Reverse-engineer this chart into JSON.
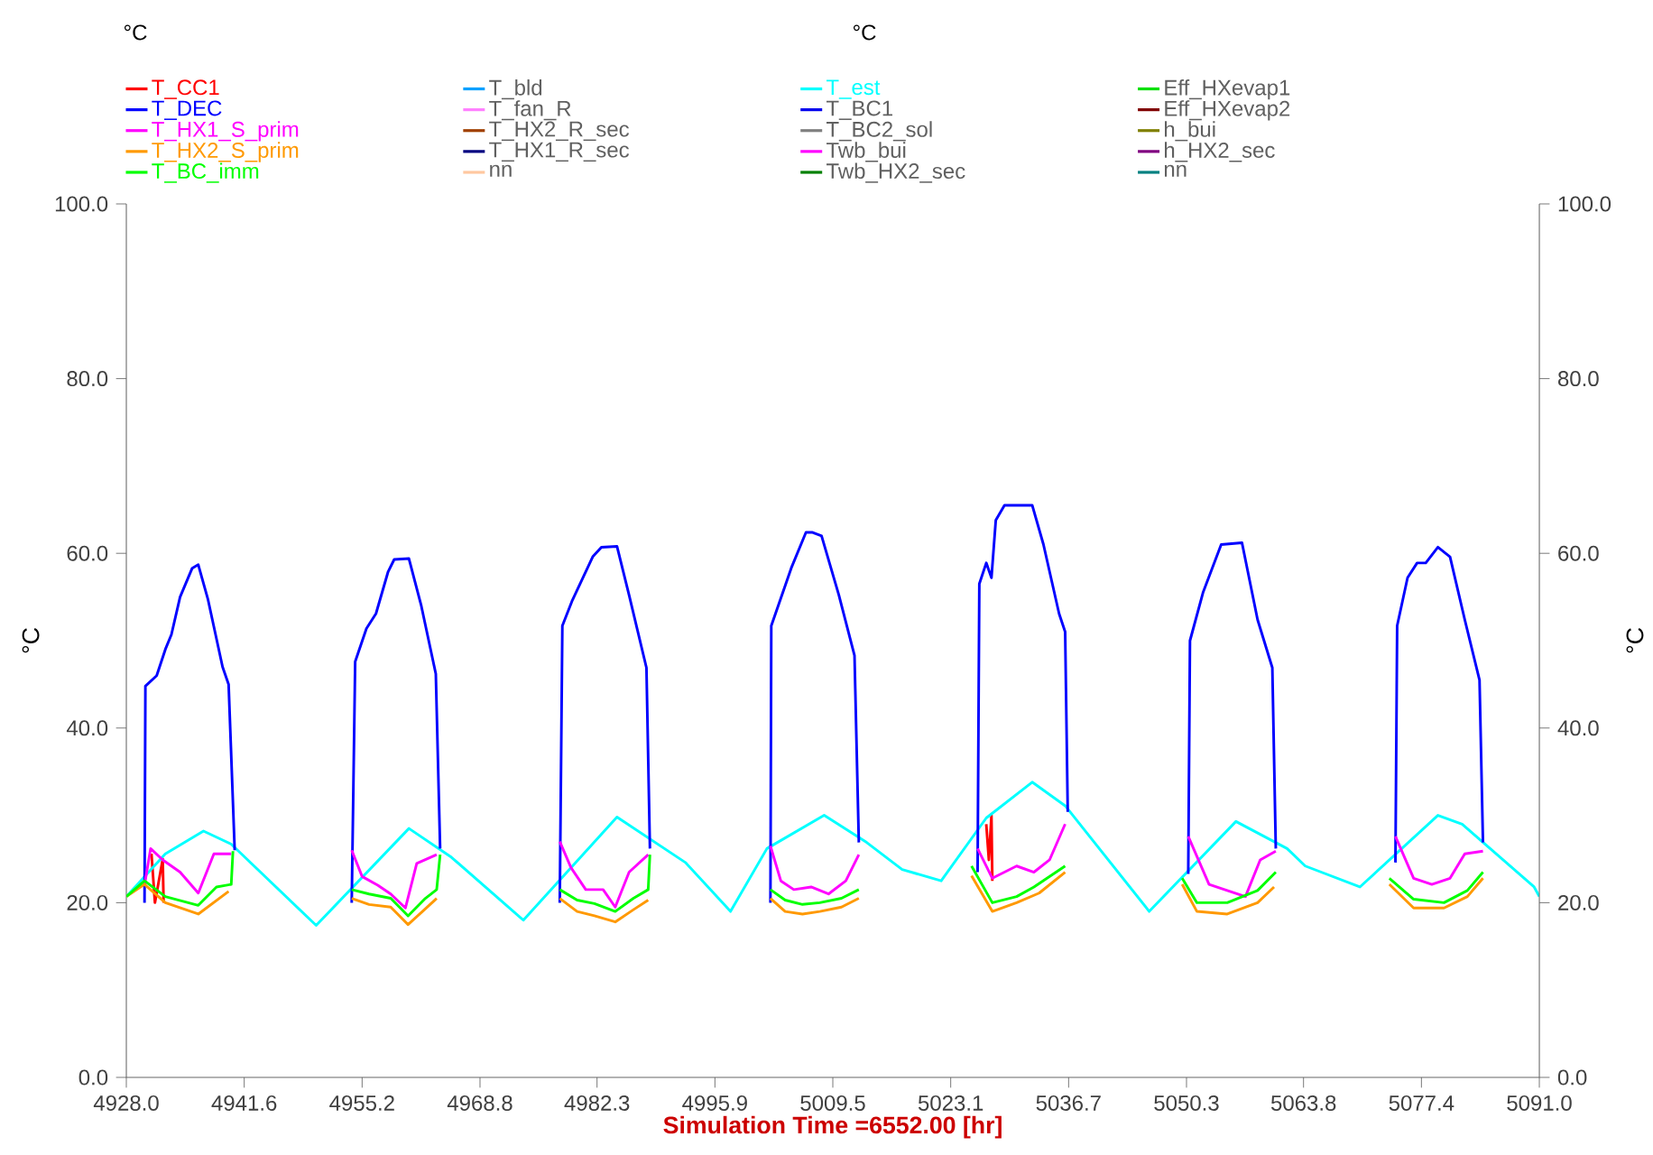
{
  "chart_data": {
    "type": "line",
    "annotations": [
      "°C",
      "°C"
    ],
    "xlabel": "Simulation Time =6552.00 [hr]",
    "ylabel": "°C",
    "y2label": "°C",
    "xlim": [
      4928.0,
      5091.0
    ],
    "xticks": [
      {
        "value": 4928.0,
        "label": "4928.0"
      },
      {
        "value": 4941.6,
        "label": "4941.6"
      },
      {
        "value": 4955.2,
        "label": "4955.2"
      },
      {
        "value": 4968.8,
        "label": "4968.8"
      },
      {
        "value": 4982.3,
        "label": "4982.3"
      },
      {
        "value": 4995.9,
        "label": "4995.9"
      },
      {
        "value": 5009.5,
        "label": "5009.5"
      },
      {
        "value": 5023.1,
        "label": "5023.1"
      },
      {
        "value": 5036.7,
        "label": "5036.7"
      },
      {
        "value": 5050.3,
        "label": "5050.3"
      },
      {
        "value": 5063.8,
        "label": "5063.8"
      },
      {
        "value": 5077.4,
        "label": "5077.4"
      },
      {
        "value": 5091.0,
        "label": "5091.0"
      }
    ],
    "ylim": [
      0,
      100
    ],
    "yticks": [
      {
        "value": 0,
        "label": "0.0"
      },
      {
        "value": 20,
        "label": "20.0"
      },
      {
        "value": 40,
        "label": "40.0"
      },
      {
        "value": 60,
        "label": "60.0"
      },
      {
        "value": 80,
        "label": "80.0"
      },
      {
        "value": 100,
        "label": "100.0"
      }
    ],
    "y2lim": [
      0,
      100
    ],
    "y2ticks": [
      {
        "value": 0,
        "label": "0.0"
      },
      {
        "value": 20,
        "label": "20.0"
      },
      {
        "value": 40,
        "label": "40.0"
      },
      {
        "value": 60,
        "label": "60.0"
      },
      {
        "value": 80,
        "label": "80.0"
      },
      {
        "value": 100,
        "label": "100.0"
      }
    ],
    "legend": "top",
    "marker": "none",
    "line_style": "solid",
    "series": [
      {
        "name": "T_CC1",
        "color": "#ff0000",
        "x": [
          4930.9,
          4931.3,
          4932.2,
          4932.3,
          4980.0,
          5027.2,
          5027.5,
          5027.8,
          5027.9
        ],
        "values": [
          25.6,
          20.0,
          25.0,
          20.0,
          null,
          29.0,
          24.9,
          30.0,
          22.5
        ]
      },
      {
        "name": "T_bld",
        "color": "#00a0ff"
      },
      {
        "name": "T_est",
        "color": "#00ffff",
        "x": [
          4928.0,
          4932.5,
          4936.9,
          4940.1,
          4949.9,
          4960.6,
          4965.5,
          4973.8,
          4984.6,
          4992.5,
          4997.7,
          5001.9,
          5008.5,
          5013.4,
          5017.5,
          5022.0,
          5027.2,
          5032.5,
          5036.3,
          5046.0,
          5056.0,
          5061.9,
          5064.0,
          5070.3,
          5079.3,
          5082.1,
          5090.4,
          5091.0
        ],
        "values": [
          20.7,
          25.6,
          28.2,
          26.7,
          17.4,
          28.5,
          25.2,
          18.0,
          29.8,
          24.6,
          19.0,
          26.2,
          30.0,
          26.9,
          23.8,
          22.5,
          29.7,
          33.8,
          31.1,
          19.0,
          29.3,
          26.2,
          24.2,
          21.8,
          30.0,
          29.0,
          21.8,
          20.7
        ]
      },
      {
        "name": "Eff_HXevap1",
        "color": "#00e000"
      },
      {
        "name": "T_DEC",
        "color": "#0000ff",
        "x": [
          4930.1,
          4930.2,
          4931.5,
          4932.5,
          4933.2,
          4934.2,
          4935.6,
          4936.3,
          4937.4,
          4939.1,
          4939.8,
          4940.5,
          4947.0,
          4954.0,
          4954.4,
          4955.7,
          4956.8,
          4958.2,
          4958.9,
          4960.6,
          4962.0,
          4963.7,
          4964.2,
          4971.0,
          4978.0,
          4978.3,
          4979.4,
          4981.8,
          4982.8,
          4984.6,
          4986.0,
          4988.0,
          4988.4,
          4995.0,
          5002.3,
          5002.4,
          5004.7,
          5006.4,
          5007.1,
          5008.2,
          5010.2,
          5012.0,
          5012.5,
          5019.0,
          5026.2,
          5026.4,
          5027.2,
          5027.8,
          5028.3,
          5029.3,
          5032.5,
          5033.8,
          5035.6,
          5036.3,
          5036.6,
          5043.0,
          5050.5,
          5050.7,
          5052.2,
          5054.3,
          5056.7,
          5058.5,
          5060.2,
          5060.6,
          5067.0,
          5074.4,
          5074.6,
          5075.8,
          5076.9,
          5077.9,
          5079.3,
          5080.7,
          5082.4,
          5084.1,
          5084.5
        ],
        "values": [
          20.0,
          44.8,
          46.0,
          49.0,
          50.7,
          55.0,
          58.3,
          58.7,
          54.8,
          47.0,
          45.0,
          26.0,
          null,
          20.0,
          47.6,
          51.4,
          53.1,
          57.9,
          59.3,
          59.4,
          54.1,
          46.2,
          26.2,
          null,
          20.0,
          51.7,
          54.5,
          59.6,
          60.7,
          60.8,
          55.2,
          46.9,
          26.2,
          null,
          20.0,
          51.7,
          58.3,
          62.4,
          62.4,
          62.0,
          55.2,
          48.3,
          26.9,
          null,
          23.5,
          56.5,
          58.9,
          57.2,
          63.8,
          65.5,
          65.5,
          61.0,
          53.1,
          51.0,
          30.4,
          null,
          23.3,
          50.0,
          55.5,
          61.0,
          61.2,
          52.4,
          46.9,
          26.2,
          null,
          24.6,
          51.7,
          57.2,
          58.9,
          58.9,
          60.7,
          59.6,
          52.4,
          45.5,
          26.9
        ]
      },
      {
        "name": "T_fan_R",
        "color": "#ff80ff"
      },
      {
        "name": "T_BC1",
        "color": "#0000ee"
      },
      {
        "name": "Eff_HXevap2",
        "color": "#800000"
      },
      {
        "name": "T_HX1_S_prim",
        "color": "#ff00ff",
        "x": [
          4930.1,
          4930.8,
          4932.2,
          4934.2,
          4936.3,
          4938.1,
          4940.1,
          4947.0,
          4954.0,
          4955.2,
          4957.0,
          4958.5,
          4960.2,
          4961.5,
          4963.8,
          4971.0,
          4978.0,
          4979.3,
          4981.0,
          4983.0,
          4984.4,
          4986.0,
          4988.2,
          4995.0,
          5002.3,
          5003.5,
          5005.0,
          5007.0,
          5009.0,
          5011.0,
          5012.5,
          5019.0,
          5026.2,
          5027.9,
          5030.7,
          5032.7,
          5034.5,
          5036.3,
          5043.0,
          5050.5,
          5052.9,
          5055.0,
          5057.1,
          5058.8,
          5060.6,
          5067.0,
          5074.4,
          5076.5,
          5078.6,
          5080.7,
          5082.4,
          5084.5
        ],
        "values": [
          22.0,
          26.2,
          24.9,
          23.5,
          21.1,
          25.6,
          25.6,
          null,
          26.0,
          23.0,
          22.0,
          21.0,
          19.4,
          24.5,
          25.5,
          null,
          27.0,
          24.0,
          21.5,
          21.5,
          19.5,
          23.5,
          25.5,
          null,
          26.5,
          22.5,
          21.5,
          21.8,
          21.0,
          22.5,
          25.5,
          null,
          26.2,
          22.8,
          24.2,
          23.5,
          24.9,
          29.0,
          null,
          27.6,
          22.1,
          21.4,
          20.7,
          24.9,
          25.9,
          null,
          27.6,
          22.8,
          22.1,
          22.8,
          25.6,
          25.9
        ]
      },
      {
        "name": "T_HX2_R_sec",
        "color": "#a04000"
      },
      {
        "name": "T_BC2_sol",
        "color": "#808080"
      },
      {
        "name": "h_bui",
        "color": "#808000"
      },
      {
        "name": "T_HX2_S_prim",
        "color": "#ff9900",
        "x": [
          4928.0,
          4930.1,
          4932.5,
          4936.3,
          4939.8,
          4947.0,
          4954.0,
          4956.0,
          4958.5,
          4960.5,
          4962.5,
          4963.8,
          4971.0,
          4978.0,
          4980.0,
          4982.0,
          4984.4,
          4986.5,
          4988.2,
          4995.0,
          5002.3,
          5004.0,
          5006.0,
          5008.0,
          5010.5,
          5012.5,
          5019.0,
          5025.5,
          5027.9,
          5030.7,
          5033.3,
          5036.3,
          5043.0,
          5049.8,
          5051.5,
          5055.0,
          5058.5,
          5060.4,
          5067.0,
          5073.7,
          5076.5,
          5080.0,
          5082.7,
          5084.5
        ],
        "values": [
          20.7,
          22.1,
          20.0,
          18.7,
          21.3,
          null,
          20.5,
          19.8,
          19.5,
          17.5,
          19.3,
          20.5,
          null,
          20.5,
          19.0,
          18.5,
          17.8,
          19.2,
          20.3,
          null,
          20.5,
          19.0,
          18.7,
          19.0,
          19.5,
          20.5,
          null,
          23.1,
          19.0,
          20.0,
          21.1,
          23.5,
          null,
          22.1,
          19.0,
          18.7,
          20.0,
          21.8,
          null,
          22.1,
          19.4,
          19.4,
          20.7,
          22.8
        ]
      },
      {
        "name": "T_HX1_R_sec",
        "color": "#000080"
      },
      {
        "name": "Twb_bui",
        "color": "#ff00ff"
      },
      {
        "name": "h_HX2_sec",
        "color": "#800080"
      },
      {
        "name": "T_BC_imm",
        "color": "#00ff00",
        "x": [
          4928.0,
          4930.1,
          4932.5,
          4936.3,
          4938.4,
          4940.1,
          4940.3,
          4947.0,
          4954.0,
          4956.0,
          4958.5,
          4960.5,
          4962.5,
          4963.8,
          4964.2,
          4971.0,
          4978.0,
          4980.0,
          4982.0,
          4984.4,
          4986.5,
          4988.2,
          4988.4,
          4995.0,
          5002.3,
          5004.0,
          5006.0,
          5008.0,
          5010.5,
          5012.5,
          5019.0,
          5025.5,
          5027.9,
          5030.7,
          5032.7,
          5036.3,
          5043.0,
          5049.8,
          5051.5,
          5055.0,
          5058.5,
          5060.6,
          5067.0,
          5073.7,
          5076.5,
          5080.0,
          5082.7,
          5084.5
        ],
        "values": [
          20.7,
          22.5,
          20.7,
          19.7,
          21.8,
          22.1,
          25.9,
          null,
          21.5,
          21.0,
          20.5,
          18.5,
          20.5,
          21.5,
          25.5,
          null,
          21.5,
          20.3,
          19.9,
          19.0,
          20.5,
          21.5,
          25.5,
          null,
          21.5,
          20.3,
          19.8,
          20.0,
          20.5,
          21.5,
          null,
          24.2,
          20.0,
          20.7,
          21.8,
          24.2,
          null,
          22.8,
          20.0,
          20.0,
          21.4,
          23.5,
          null,
          22.8,
          20.4,
          20.0,
          21.4,
          23.5
        ]
      },
      {
        "name": "nn",
        "color": "#ffc8a0"
      },
      {
        "name": "Twb_HX2_sec",
        "color": "#008000"
      },
      {
        "name": "nn",
        "color": "#008080"
      }
    ]
  }
}
